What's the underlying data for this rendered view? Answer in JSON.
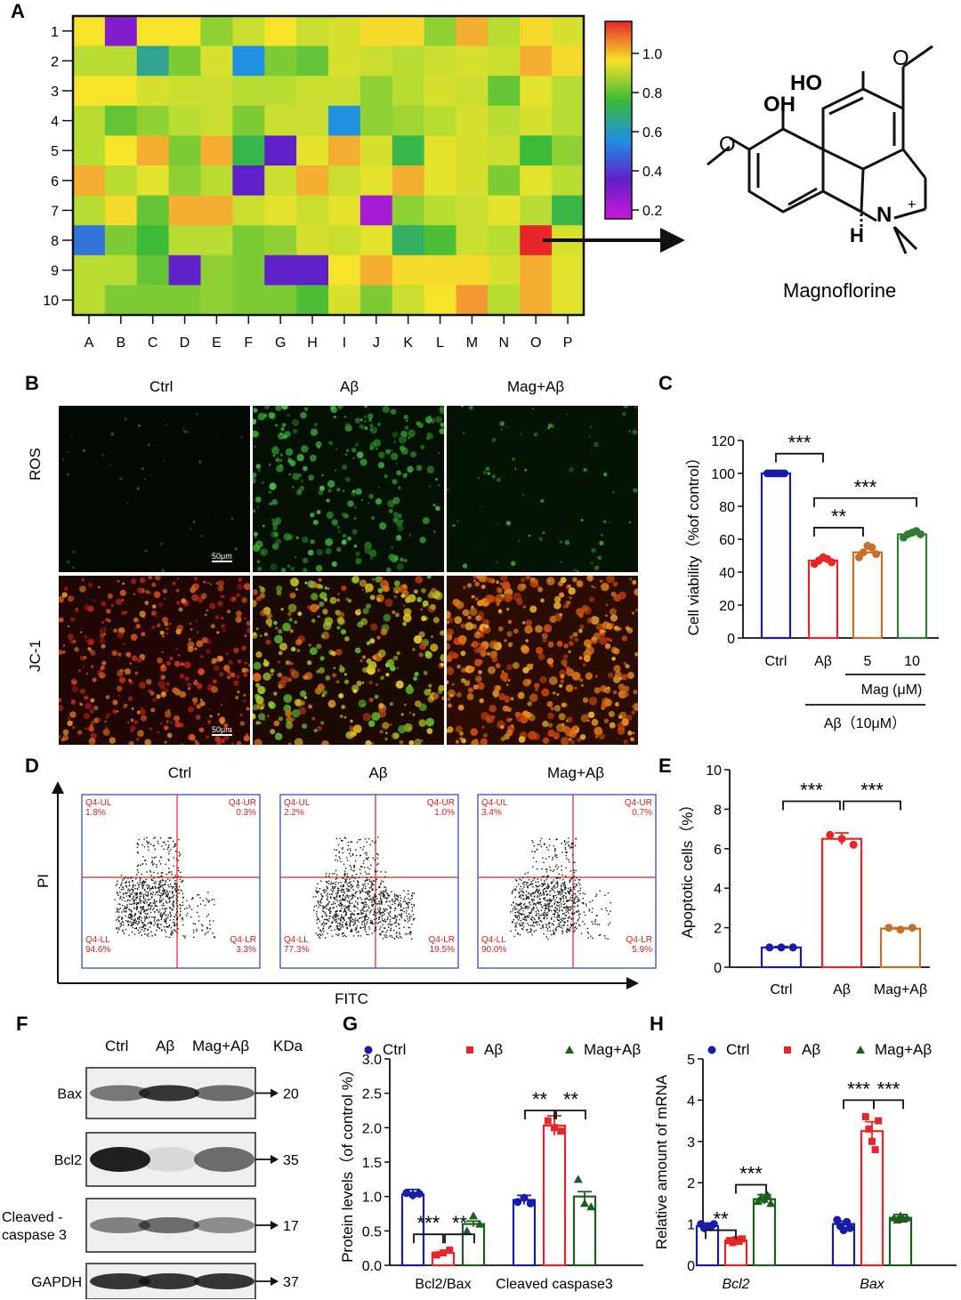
{
  "panel_letters": {
    "A": "A",
    "B": "B",
    "C": "C",
    "D": "D",
    "E": "E",
    "F": "F",
    "G": "G",
    "H": "H"
  },
  "panelA": {
    "row_labels": [
      "1",
      "2",
      "3",
      "4",
      "5",
      "6",
      "7",
      "8",
      "9",
      "10"
    ],
    "col_labels": [
      "A",
      "B",
      "C",
      "D",
      "E",
      "F",
      "G",
      "H",
      "I",
      "J",
      "K",
      "L",
      "M",
      "N",
      "O",
      "P"
    ],
    "colorbar_ticks": [
      "1.0",
      "0.8",
      "0.6",
      "0.4",
      "0.2"
    ],
    "compound_name": "Magnoflorine",
    "chem_labels": {
      "ho": "HO",
      "oh": "OH",
      "n": "N",
      "plus": "+",
      "h": "H"
    },
    "colors": {
      "red": "#e8262a",
      "orange": "#f59a32",
      "yellow": "#f5e42a",
      "lime": "#b8dc32",
      "green": "#3cba38",
      "teal": "#30b4a0",
      "blue": "#2090e0",
      "purple": "#6020c8",
      "magenta": "#c818d8"
    }
  },
  "chart_data": [
    {
      "type": "heatmap",
      "rows": [
        "1",
        "2",
        "3",
        "4",
        "5",
        "6",
        "7",
        "8",
        "9",
        "10"
      ],
      "cols": [
        "A",
        "B",
        "C",
        "D",
        "E",
        "F",
        "G",
        "H",
        "I",
        "J",
        "K",
        "L",
        "M",
        "N",
        "O",
        "P"
      ],
      "scale": [
        0.15,
        1.1
      ],
      "values": [
        [
          0.95,
          0.25,
          0.95,
          0.95,
          0.8,
          0.88,
          0.95,
          0.88,
          0.9,
          0.96,
          0.96,
          0.8,
          1.0,
          0.85,
          0.96,
          0.9
        ],
        [
          0.85,
          0.85,
          0.6,
          0.78,
          0.9,
          0.5,
          0.78,
          0.75,
          0.9,
          0.88,
          0.85,
          0.88,
          0.9,
          0.88,
          1.0,
          0.96
        ],
        [
          0.95,
          0.95,
          0.9,
          0.88,
          0.88,
          0.85,
          0.85,
          0.88,
          0.88,
          0.8,
          0.85,
          0.9,
          0.88,
          0.75,
          0.92,
          0.85
        ],
        [
          0.85,
          0.75,
          0.8,
          0.85,
          0.88,
          0.78,
          0.88,
          0.88,
          0.5,
          0.8,
          0.82,
          0.85,
          0.9,
          0.85,
          0.9,
          0.85
        ],
        [
          0.85,
          0.95,
          1.0,
          0.78,
          1.0,
          0.68,
          0.3,
          0.92,
          1.0,
          0.9,
          0.68,
          0.92,
          0.9,
          0.88,
          0.7,
          0.8
        ],
        [
          1.0,
          0.85,
          0.92,
          0.8,
          0.85,
          0.3,
          0.88,
          1.0,
          0.88,
          0.92,
          1.0,
          0.92,
          0.9,
          0.78,
          0.92,
          0.85
        ],
        [
          0.85,
          0.96,
          0.75,
          1.0,
          1.0,
          0.88,
          0.92,
          0.88,
          0.92,
          0.2,
          0.8,
          0.85,
          0.88,
          0.92,
          0.85,
          0.68
        ],
        [
          0.45,
          0.78,
          0.7,
          0.85,
          0.85,
          0.78,
          0.8,
          0.9,
          0.88,
          0.92,
          0.65,
          0.72,
          0.88,
          0.85,
          1.1,
          0.9
        ],
        [
          0.85,
          0.85,
          0.75,
          0.3,
          0.8,
          0.78,
          0.3,
          0.3,
          0.95,
          1.0,
          0.96,
          0.96,
          0.96,
          0.9,
          1.0,
          0.92
        ],
        [
          0.85,
          0.78,
          0.78,
          0.78,
          0.8,
          0.78,
          0.78,
          0.72,
          0.9,
          0.78,
          0.88,
          0.95,
          1.02,
          0.85,
          1.0,
          0.92
        ]
      ]
    },
    {
      "type": "bar",
      "title": "C",
      "categories": [
        "Ctrl",
        "Aβ",
        "5",
        "10"
      ],
      "values": [
        100,
        47,
        52,
        63
      ],
      "points": [
        [
          100,
          100,
          100,
          100,
          100,
          100
        ],
        [
          45,
          47,
          49,
          48,
          46
        ],
        [
          49,
          52,
          56,
          55,
          51
        ],
        [
          61,
          63,
          64,
          65,
          63
        ]
      ],
      "ylabel": "Cell viability（%of control）",
      "ylim": [
        0,
        120
      ],
      "yticks": [
        "0",
        "20",
        "40",
        "60",
        "80",
        "100",
        "120"
      ],
      "group_label_mag": "Mag (μM)",
      "group_label_ab": "Aβ（10μM）",
      "sig": [
        "***",
        "**",
        "***"
      ],
      "colors": [
        "#1a1aa8",
        "#e8262a",
        "#c87028",
        "#2e7d32"
      ]
    },
    {
      "type": "bar",
      "title": "E",
      "categories": [
        "Ctrl",
        "Aβ",
        "Mag+Aβ"
      ],
      "values": [
        1.0,
        6.5,
        1.95
      ],
      "points": [
        [
          1.0,
          1.0,
          1.0
        ],
        [
          6.7,
          6.5,
          6.2
        ],
        [
          2.0,
          1.9,
          2.0
        ]
      ],
      "errors": [
        0.05,
        0.3,
        0.05
      ],
      "ylabel": "Apoptotic cells（%）",
      "ylim": [
        0,
        10
      ],
      "yticks": [
        "0",
        "2",
        "4",
        "6",
        "8",
        "10"
      ],
      "sig": [
        "***",
        "***"
      ],
      "colors": [
        "#1a1aa8",
        "#e8262a",
        "#c87028"
      ]
    },
    {
      "type": "bar",
      "title": "G",
      "groups": [
        "Bcl2/Bax",
        "Cleaved caspase3"
      ],
      "series": [
        {
          "name": "Ctrl",
          "values": [
            1.03,
            0.95
          ],
          "points": [
            [
              1.05,
              1.02,
              1.04
            ],
            [
              0.92,
              0.98,
              0.9
            ]
          ]
        },
        {
          "name": "Aβ",
          "values": [
            0.18,
            2.03
          ],
          "points": [
            [
              0.15,
              0.18,
              0.22
            ],
            [
              2.1,
              2.0,
              1.95
            ]
          ]
        },
        {
          "name": "Mag+Aβ",
          "values": [
            0.6,
            1.0
          ],
          "points": [
            [
              0.5,
              0.72,
              0.6
            ],
            [
              1.25,
              0.9,
              0.85
            ]
          ]
        }
      ],
      "ylabel": "Protein levels（of control %）",
      "ylim": [
        0,
        3.0
      ],
      "yticks": [
        "0.0",
        "0.5",
        "1.0",
        "1.5",
        "2.0",
        "2.5",
        "3.0"
      ],
      "sig": [
        "***",
        "**",
        "**",
        "**"
      ],
      "colors": [
        "#1a1aa8",
        "#e8262a",
        "#1b5e20"
      ]
    },
    {
      "type": "bar",
      "title": "H",
      "groups": [
        "Bcl2",
        "Bax"
      ],
      "series": [
        {
          "name": "Ctrl",
          "values": [
            0.95,
            1.0
          ],
          "points": [
            [
              1.0,
              0.9,
              0.95,
              0.92,
              1.0
            ],
            [
              1.1,
              0.95,
              0.85,
              1.05,
              0.9
            ]
          ]
        },
        {
          "name": "Aβ",
          "values": [
            0.6,
            3.25
          ],
          "points": [
            [
              0.6,
              0.55,
              0.62,
              0.58,
              0.64
            ],
            [
              3.6,
              3.3,
              3.0,
              2.8,
              3.5
            ]
          ]
        },
        {
          "name": "Mag+Aβ",
          "values": [
            1.6,
            1.15
          ],
          "points": [
            [
              1.55,
              1.65,
              1.6,
              1.7,
              1.5
            ],
            [
              1.15,
              1.1,
              1.2,
              1.12,
              1.15
            ]
          ]
        }
      ],
      "ylabel": "Relative amount of mRNA",
      "ylim": [
        0,
        5
      ],
      "yticks": [
        "0",
        "1",
        "2",
        "3",
        "4",
        "5"
      ],
      "sig": [
        "**",
        "***",
        "***",
        "***"
      ],
      "colors": [
        "#1a1aa8",
        "#e8262a",
        "#1b5e20"
      ]
    }
  ],
  "panelB": {
    "col_labels": [
      "Ctrl",
      "Aβ",
      "Mag+Aβ"
    ],
    "row_labels": [
      "ROS",
      "JC-1"
    ],
    "scalebar": "50μm"
  },
  "panelD": {
    "titles": [
      "Ctrl",
      "Aβ",
      "Mag+Aβ"
    ],
    "ylabel": "PI",
    "xlabel": "FITC",
    "quadrant_names": [
      "Q4-UL",
      "Q4-UR",
      "Q4-LL",
      "Q4-LR"
    ],
    "quadrants": [
      [
        "1.8%",
        "0.3%",
        "94.6%",
        "3.3%"
      ],
      [
        "2.2%",
        "1.0%",
        "77.3%",
        "19.5%"
      ],
      [
        "3.4%",
        "0.7%",
        "90.0%",
        "5.9%"
      ]
    ]
  },
  "panelF": {
    "col_labels": [
      "Ctrl",
      "Aβ",
      "Mag+Aβ",
      "KDa"
    ],
    "bands": [
      {
        "name": "Bax",
        "kda": "20"
      },
      {
        "name": "Bcl2",
        "kda": "35"
      },
      {
        "name": "Cleaved -\ncaspase 3",
        "kda": "17"
      },
      {
        "name": "GAPDH",
        "kda": "37"
      }
    ]
  },
  "legend": [
    "Ctrl",
    "Aβ",
    "Mag+Aβ"
  ]
}
